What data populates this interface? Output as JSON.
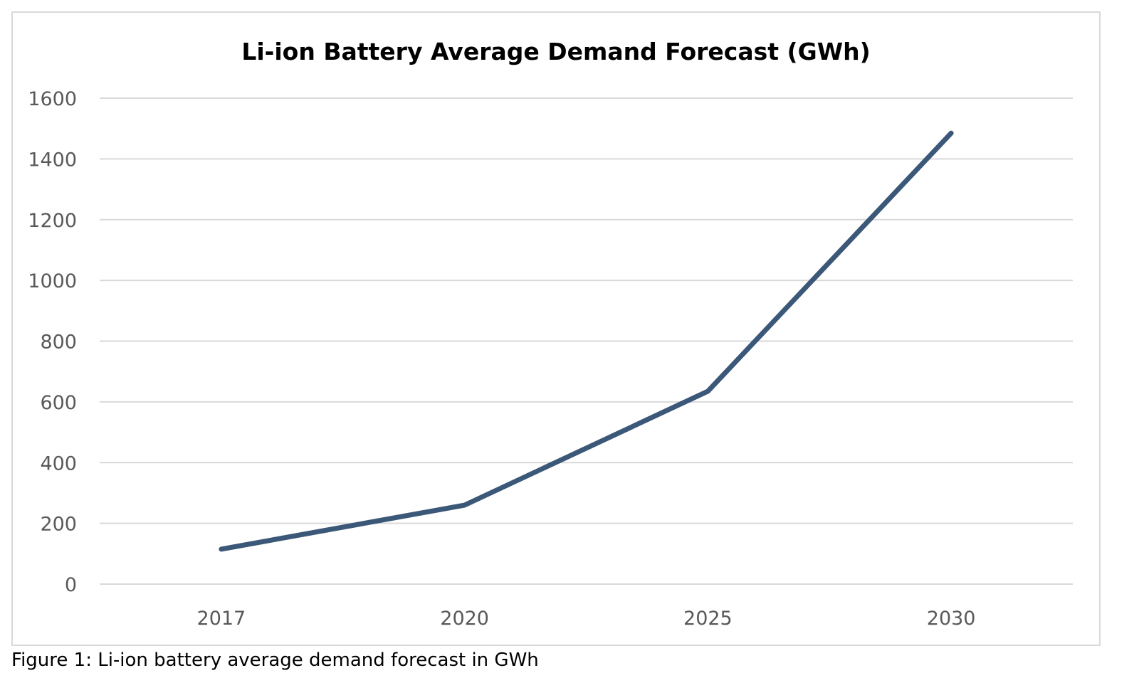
{
  "chart_data": {
    "type": "line",
    "title": "Li-ion Battery Average Demand Forecast (GWh)",
    "xlabel": "",
    "ylabel": "",
    "categories": [
      "2017",
      "2020",
      "2025",
      "2030"
    ],
    "series": [
      {
        "name": "Li-ion Battery Average Demand (GWh)",
        "values": [
          115,
          260,
          635,
          1485
        ],
        "color": "#3b5878"
      }
    ],
    "ylim": [
      0,
      1600
    ],
    "yticks": [
      "0",
      "200",
      "400",
      "600",
      "800",
      "1000",
      "1200",
      "1400",
      "1600"
    ],
    "grid": true,
    "legend": "none"
  },
  "caption": "Figure 1: Li-ion battery average demand forecast in GWh"
}
